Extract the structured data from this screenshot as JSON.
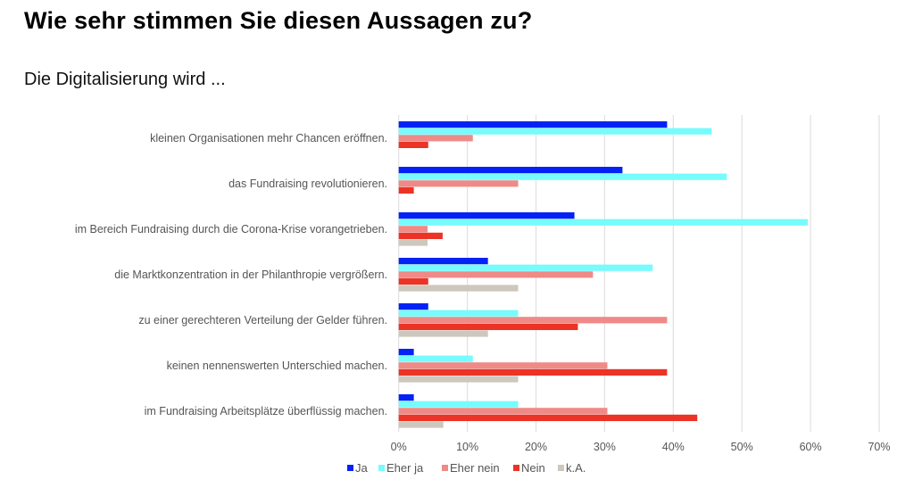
{
  "header": {
    "title": "Wie sehr stimmen Sie diesen Aussagen zu?",
    "subtitle": "Die Digitalisierung wird ..."
  },
  "chart_data": {
    "type": "bar",
    "orientation": "horizontal",
    "title": "Wie sehr stimmen Sie diesen Aussagen zu?",
    "subtitle": "Die Digitalisierung wird ...",
    "xlabel": "",
    "ylabel": "",
    "xlim": [
      0,
      70
    ],
    "x_ticks": [
      0,
      10,
      20,
      30,
      40,
      50,
      60,
      70
    ],
    "x_tick_labels": [
      "0%",
      "10%",
      "20%",
      "30%",
      "40%",
      "50%",
      "60%",
      "70%"
    ],
    "grid": "vertical",
    "legend_position": "bottom",
    "categories": [
      "kleinen Organisationen mehr Chancen eröffnen.",
      "das Fundraising revolutionieren.",
      "im Bereich Fundraising durch die Corona-Krise vorangetrieben.",
      "die Marktkonzentration in der Philanthropie vergrößern.",
      "zu einer gerechteren Verteilung der Gelder führen.",
      "keinen nennenswerten Unterschied machen.",
      "im Fundraising Arbeitsplätze überflüssig machen."
    ],
    "series": [
      {
        "name": "Ja",
        "color": "#0322f5",
        "values": [
          39.1,
          32.6,
          25.6,
          13.0,
          4.3,
          2.2,
          2.2
        ]
      },
      {
        "name": "Eher ja",
        "color": "#77fbfd",
        "values": [
          45.6,
          47.8,
          59.6,
          37.0,
          17.4,
          10.8,
          17.4
        ]
      },
      {
        "name": "Eher nein",
        "color": "#ef8a87",
        "values": [
          10.8,
          17.4,
          4.2,
          28.3,
          39.1,
          30.4,
          30.4
        ]
      },
      {
        "name": "Nein",
        "color": "#eb3326",
        "values": [
          4.3,
          2.2,
          6.4,
          4.3,
          26.1,
          39.1,
          43.5
        ]
      },
      {
        "name": "k.A.",
        "color": "#cdc7bd",
        "values": [
          0,
          0,
          4.2,
          17.4,
          13.0,
          17.4,
          6.5
        ]
      }
    ]
  }
}
